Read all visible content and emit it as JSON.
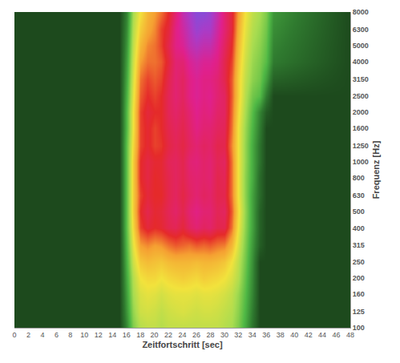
{
  "chart_data": {
    "type": "heatmap",
    "x_label": "Zeitfortschritt [sec]",
    "y_label": "Frequenz [Hz]",
    "x": [
      0,
      14,
      15,
      16,
      17,
      18,
      19,
      20,
      21,
      22,
      23,
      24,
      25,
      26,
      27,
      28,
      29,
      30,
      31,
      32,
      33,
      34,
      35,
      36,
      37,
      48
    ],
    "y": [
      100,
      125,
      160,
      200,
      250,
      315,
      400,
      500,
      630,
      800,
      1000,
      1250,
      1600,
      2000,
      2500,
      3150,
      4000,
      5000,
      6300,
      8000
    ],
    "z": [
      [
        0,
        0,
        0,
        15,
        32,
        40,
        42,
        42,
        40,
        42,
        42,
        42,
        42,
        42,
        42,
        42,
        42,
        40,
        38,
        32,
        22,
        10,
        0,
        0,
        0,
        0
      ],
      [
        0,
        0,
        0,
        18,
        35,
        44,
        45,
        44,
        42,
        44,
        45,
        46,
        45,
        44,
        45,
        45,
        44,
        42,
        40,
        34,
        24,
        12,
        0,
        0,
        0,
        0
      ],
      [
        0,
        0,
        0,
        20,
        38,
        46,
        48,
        47,
        45,
        47,
        48,
        48,
        48,
        47,
        48,
        48,
        47,
        45,
        42,
        36,
        26,
        14,
        0,
        0,
        0,
        0
      ],
      [
        0,
        0,
        0,
        22,
        40,
        50,
        52,
        52,
        50,
        52,
        53,
        54,
        53,
        52,
        54,
        53,
        52,
        50,
        46,
        40,
        28,
        15,
        0,
        0,
        0,
        0
      ],
      [
        0,
        0,
        0,
        24,
        44,
        55,
        57,
        56,
        55,
        57,
        58,
        58,
        58,
        57,
        58,
        58,
        57,
        55,
        50,
        42,
        30,
        16,
        0,
        0,
        0,
        0
      ],
      [
        0,
        0,
        0,
        26,
        48,
        62,
        64,
        62,
        63,
        66,
        68,
        67,
        66,
        68,
        67,
        68,
        66,
        65,
        58,
        46,
        32,
        18,
        5,
        0,
        0,
        0
      ],
      [
        0,
        0,
        0,
        28,
        52,
        70,
        74,
        72,
        73,
        76,
        77,
        74,
        78,
        80,
        78,
        79,
        76,
        76,
        66,
        50,
        34,
        20,
        6,
        0,
        0,
        0
      ],
      [
        0,
        0,
        0,
        28,
        54,
        72,
        76,
        73,
        74,
        77,
        79,
        76,
        80,
        82,
        80,
        80,
        77,
        78,
        68,
        52,
        35,
        20,
        6,
        0,
        0,
        0
      ],
      [
        0,
        0,
        0,
        28,
        54,
        70,
        74,
        72,
        72,
        76,
        78,
        75,
        78,
        80,
        78,
        79,
        76,
        76,
        66,
        50,
        34,
        20,
        8,
        0,
        0,
        0
      ],
      [
        0,
        0,
        0,
        28,
        54,
        72,
        75,
        72,
        73,
        76,
        78,
        76,
        79,
        80,
        79,
        80,
        76,
        77,
        66,
        50,
        34,
        22,
        8,
        0,
        0,
        0
      ],
      [
        0,
        0,
        0,
        28,
        54,
        72,
        75,
        73,
        73,
        77,
        78,
        76,
        80,
        81,
        79,
        80,
        77,
        78,
        66,
        50,
        35,
        22,
        10,
        0,
        0,
        0
      ],
      [
        0,
        0,
        0,
        28,
        52,
        70,
        73,
        70,
        71,
        75,
        77,
        75,
        78,
        80,
        78,
        79,
        76,
        76,
        64,
        50,
        35,
        22,
        10,
        0,
        0,
        0
      ],
      [
        0,
        0,
        0,
        26,
        50,
        70,
        73,
        70,
        72,
        76,
        78,
        76,
        79,
        82,
        80,
        80,
        78,
        77,
        66,
        50,
        36,
        24,
        12,
        0,
        0,
        0
      ],
      [
        0,
        0,
        0,
        26,
        50,
        70,
        74,
        72,
        72,
        77,
        79,
        77,
        80,
        83,
        81,
        82,
        79,
        78,
        67,
        52,
        38,
        26,
        14,
        4,
        0,
        0
      ],
      [
        0,
        0,
        0,
        24,
        48,
        68,
        72,
        70,
        72,
        77,
        80,
        78,
        82,
        84,
        82,
        83,
        80,
        78,
        68,
        54,
        40,
        30,
        26,
        12,
        0,
        0
      ],
      [
        0,
        0,
        0,
        22,
        46,
        66,
        70,
        68,
        70,
        76,
        80,
        78,
        82,
        84,
        82,
        82,
        80,
        76,
        68,
        54,
        42,
        34,
        30,
        20,
        6,
        0
      ],
      [
        0,
        0,
        0,
        20,
        44,
        62,
        66,
        66,
        68,
        74,
        80,
        80,
        84,
        86,
        84,
        84,
        82,
        76,
        70,
        56,
        44,
        36,
        32,
        26,
        12,
        0
      ],
      [
        0,
        0,
        0,
        18,
        42,
        58,
        64,
        66,
        70,
        76,
        82,
        84,
        88,
        90,
        88,
        88,
        84,
        78,
        72,
        58,
        46,
        38,
        34,
        28,
        14,
        0
      ],
      [
        0,
        0,
        0,
        16,
        40,
        54,
        60,
        64,
        70,
        74,
        82,
        86,
        90,
        94,
        92,
        92,
        86,
        80,
        74,
        60,
        48,
        40,
        36,
        30,
        16,
        0
      ],
      [
        0,
        0,
        0,
        14,
        38,
        50,
        58,
        62,
        66,
        72,
        80,
        88,
        92,
        96,
        96,
        94,
        88,
        80,
        74,
        62,
        50,
        42,
        38,
        32,
        18,
        0
      ]
    ],
    "zlim": [
      0,
      100
    ],
    "xlim": [
      0,
      48
    ],
    "xticks": [
      0,
      2,
      4,
      6,
      8,
      10,
      12,
      14,
      16,
      18,
      20,
      22,
      24,
      26,
      28,
      30,
      32,
      34,
      36,
      38,
      40,
      42,
      44,
      46,
      48
    ],
    "ylim": [
      100,
      8000
    ],
    "yticks": [
      100,
      125,
      160,
      200,
      250,
      315,
      400,
      500,
      630,
      800,
      1000,
      1250,
      1600,
      2000,
      2500,
      3150,
      4000,
      5000,
      6300,
      8000
    ],
    "log": "y",
    "grid": false
  }
}
